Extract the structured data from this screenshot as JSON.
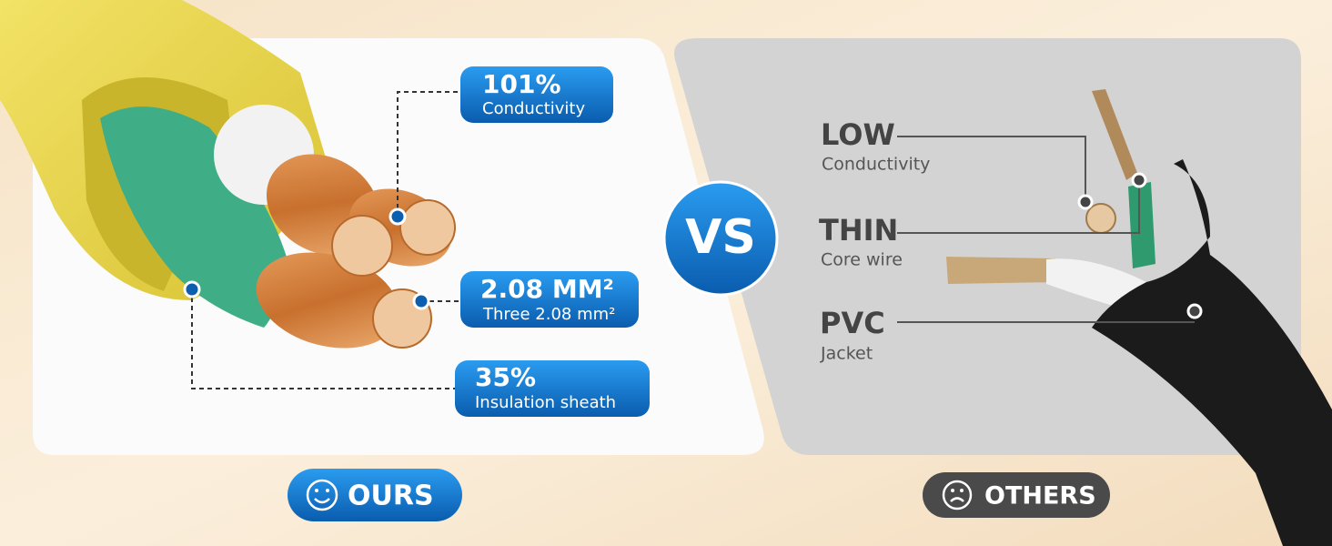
{
  "ours": {
    "callouts": [
      {
        "title": "101%",
        "subtitle": "Conductivity"
      },
      {
        "title": "2.08 MM²",
        "subtitle": "Three 2.08 mm²"
      },
      {
        "title": "35%",
        "subtitle": "Insulation sheath"
      }
    ],
    "badge": "OURS"
  },
  "vs": "VS",
  "others": {
    "callouts": [
      {
        "title": "LOW",
        "subtitle": "Conductivity"
      },
      {
        "title": "THIN",
        "subtitle": "Core wire"
      },
      {
        "title": "PVC",
        "subtitle": "Jacket"
      }
    ],
    "badge": "OTHERS"
  }
}
